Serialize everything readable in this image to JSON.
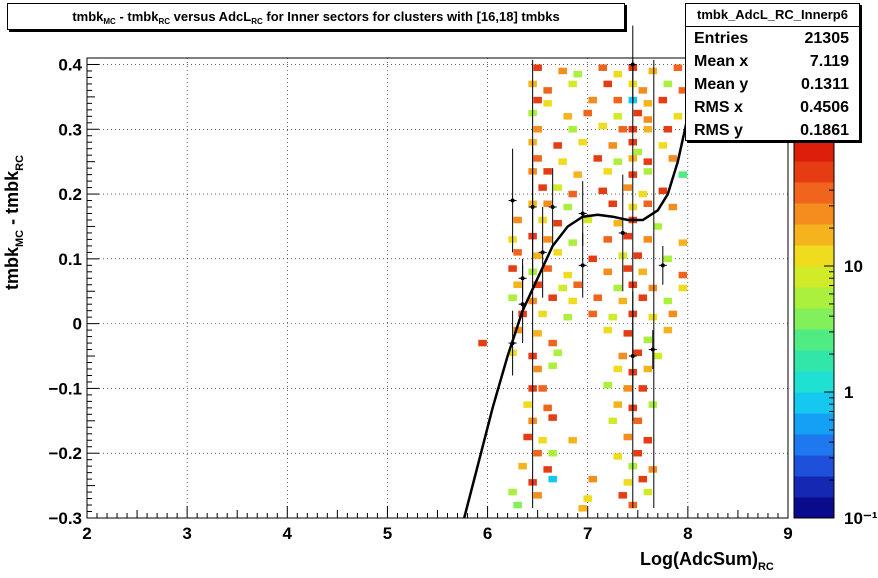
{
  "chart_data": {
    "type": "heatmap",
    "title_parts": [
      "tmbk",
      "MC",
      " - tmbk",
      "RC",
      " versus AdcL",
      "RC",
      " for Inner sectors for clusters with [16,18] tmbks"
    ],
    "xlabel_parts": [
      "Log(AdcSum)",
      "RC"
    ],
    "ylabel_parts": [
      "tmbk",
      "MC",
      " - tmbk",
      "RC"
    ],
    "xlim": [
      2,
      9
    ],
    "ylim": [
      -0.3,
      0.41
    ],
    "x_ticks": [
      "2",
      "3",
      "4",
      "5",
      "6",
      "7",
      "8",
      "9"
    ],
    "y_ticks": [
      "0.4",
      "0.3",
      "0.2",
      "0.1",
      "0",
      "−0.1",
      "−0.2",
      "−0.3"
    ],
    "z_scale": "log",
    "zlim": [
      0.1,
      100
    ],
    "z_ticks": [
      "10",
      "1",
      "10⁻¹"
    ],
    "palette": [
      "#0a0a8c",
      "#1428b4",
      "#1e50dc",
      "#1e78f0",
      "#14a0f5",
      "#14c8f0",
      "#1ee1d2",
      "#32e6aa",
      "#50eb82",
      "#82f05a",
      "#aaf03c",
      "#d2eb28",
      "#f0dc1e",
      "#f5b41e",
      "#f58c1e",
      "#f0641e",
      "#e63c14",
      "#dc1e0a"
    ],
    "cells_note": "approximate occupancy of 2D histogram, [x, y, colour level 0-17]",
    "cells": [
      [
        6.5,
        0.395,
        16
      ],
      [
        6.75,
        0.39,
        14
      ],
      [
        6.9,
        0.385,
        10
      ],
      [
        7.15,
        0.395,
        15
      ],
      [
        7.3,
        0.385,
        12
      ],
      [
        7.45,
        0.395,
        16
      ],
      [
        7.65,
        0.39,
        13
      ],
      [
        7.9,
        0.395,
        15
      ],
      [
        6.45,
        0.37,
        13
      ],
      [
        6.6,
        0.36,
        15
      ],
      [
        6.85,
        0.37,
        11
      ],
      [
        7.2,
        0.37,
        16
      ],
      [
        7.45,
        0.37,
        12
      ],
      [
        7.55,
        0.36,
        14
      ],
      [
        7.8,
        0.37,
        10
      ],
      [
        7.95,
        0.36,
        15
      ],
      [
        6.5,
        0.345,
        16
      ],
      [
        6.6,
        0.34,
        12
      ],
      [
        7.05,
        0.345,
        14
      ],
      [
        7.3,
        0.345,
        15
      ],
      [
        7.45,
        0.345,
        5
      ],
      [
        7.6,
        0.34,
        13
      ],
      [
        7.75,
        0.345,
        16
      ],
      [
        6.45,
        0.325,
        10
      ],
      [
        6.8,
        0.32,
        13
      ],
      [
        7.0,
        0.325,
        15
      ],
      [
        7.3,
        0.32,
        11
      ],
      [
        7.5,
        0.325,
        16
      ],
      [
        7.6,
        0.315,
        14
      ],
      [
        7.9,
        0.32,
        12
      ],
      [
        6.5,
        0.3,
        14
      ],
      [
        6.85,
        0.3,
        10
      ],
      [
        7.15,
        0.305,
        12
      ],
      [
        7.35,
        0.3,
        15
      ],
      [
        7.45,
        0.3,
        16
      ],
      [
        7.6,
        0.3,
        13
      ],
      [
        7.8,
        0.3,
        16
      ],
      [
        6.45,
        0.28,
        13
      ],
      [
        6.7,
        0.275,
        16
      ],
      [
        6.95,
        0.28,
        12
      ],
      [
        7.25,
        0.275,
        14
      ],
      [
        7.45,
        0.28,
        16
      ],
      [
        7.5,
        0.265,
        10
      ],
      [
        7.75,
        0.275,
        12
      ],
      [
        6.5,
        0.255,
        15
      ],
      [
        6.75,
        0.25,
        12
      ],
      [
        7.1,
        0.255,
        16
      ],
      [
        7.3,
        0.25,
        10
      ],
      [
        7.45,
        0.255,
        13
      ],
      [
        7.6,
        0.25,
        16
      ],
      [
        7.85,
        0.255,
        14
      ],
      [
        6.45,
        0.235,
        14
      ],
      [
        6.6,
        0.235,
        16
      ],
      [
        6.9,
        0.23,
        13
      ],
      [
        7.2,
        0.235,
        12
      ],
      [
        7.45,
        0.23,
        16
      ],
      [
        7.6,
        0.235,
        10
      ],
      [
        7.95,
        0.23,
        8
      ],
      [
        6.55,
        0.21,
        16
      ],
      [
        6.7,
        0.21,
        11
      ],
      [
        6.85,
        0.2,
        15
      ],
      [
        7.15,
        0.205,
        16
      ],
      [
        7.4,
        0.21,
        14
      ],
      [
        7.55,
        0.2,
        12
      ],
      [
        7.75,
        0.205,
        16
      ],
      [
        6.45,
        0.185,
        13
      ],
      [
        6.6,
        0.185,
        14
      ],
      [
        6.8,
        0.18,
        10
      ],
      [
        7.25,
        0.185,
        16
      ],
      [
        7.45,
        0.18,
        12
      ],
      [
        7.6,
        0.185,
        15
      ],
      [
        7.85,
        0.18,
        14
      ],
      [
        6.3,
        0.16,
        14
      ],
      [
        6.55,
        0.16,
        12
      ],
      [
        6.7,
        0.155,
        16
      ],
      [
        7.0,
        0.16,
        11
      ],
      [
        7.3,
        0.155,
        13
      ],
      [
        7.45,
        0.16,
        16
      ],
      [
        7.7,
        0.15,
        10
      ],
      [
        6.25,
        0.13,
        12
      ],
      [
        6.45,
        0.135,
        16
      ],
      [
        6.6,
        0.13,
        14
      ],
      [
        6.85,
        0.125,
        10
      ],
      [
        7.2,
        0.13,
        15
      ],
      [
        7.4,
        0.135,
        16
      ],
      [
        7.6,
        0.13,
        14
      ],
      [
        7.95,
        0.125,
        13
      ],
      [
        6.3,
        0.11,
        15
      ],
      [
        6.5,
        0.105,
        13
      ],
      [
        6.7,
        0.11,
        12
      ],
      [
        7.05,
        0.1,
        16
      ],
      [
        7.35,
        0.105,
        11
      ],
      [
        7.5,
        0.105,
        16
      ],
      [
        7.8,
        0.1,
        10
      ],
      [
        6.25,
        0.085,
        16
      ],
      [
        6.45,
        0.08,
        10
      ],
      [
        6.6,
        0.085,
        15
      ],
      [
        6.8,
        0.075,
        12
      ],
      [
        7.2,
        0.08,
        14
      ],
      [
        7.4,
        0.085,
        16
      ],
      [
        7.55,
        0.08,
        13
      ],
      [
        7.95,
        0.075,
        15
      ],
      [
        6.3,
        0.06,
        13
      ],
      [
        6.5,
        0.06,
        16
      ],
      [
        6.75,
        0.055,
        11
      ],
      [
        6.9,
        0.06,
        15
      ],
      [
        7.3,
        0.055,
        10
      ],
      [
        7.45,
        0.06,
        16
      ],
      [
        7.65,
        0.055,
        14
      ],
      [
        7.95,
        0.055,
        12
      ],
      [
        6.25,
        0.04,
        10
      ],
      [
        6.45,
        0.035,
        14
      ],
      [
        6.65,
        0.04,
        16
      ],
      [
        6.85,
        0.035,
        12
      ],
      [
        7.1,
        0.04,
        15
      ],
      [
        7.35,
        0.035,
        13
      ],
      [
        7.55,
        0.04,
        16
      ],
      [
        7.8,
        0.035,
        10
      ],
      [
        6.35,
        0.015,
        16
      ],
      [
        6.55,
        0.015,
        12
      ],
      [
        6.8,
        0.01,
        10
      ],
      [
        7.05,
        0.015,
        15
      ],
      [
        7.25,
        0.01,
        11
      ],
      [
        7.45,
        0.015,
        16
      ],
      [
        7.65,
        0.01,
        12
      ],
      [
        7.85,
        0.015,
        14
      ],
      [
        5.95,
        -0.03,
        16
      ],
      [
        6.3,
        -0.01,
        14
      ],
      [
        6.5,
        -0.015,
        13
      ],
      [
        6.65,
        -0.03,
        15
      ],
      [
        7.2,
        -0.01,
        12
      ],
      [
        7.4,
        -0.015,
        16
      ],
      [
        7.6,
        -0.025,
        10
      ],
      [
        7.8,
        -0.01,
        13
      ],
      [
        6.25,
        -0.045,
        12
      ],
      [
        6.45,
        -0.05,
        16
      ],
      [
        6.7,
        -0.045,
        10
      ],
      [
        7.35,
        -0.05,
        14
      ],
      [
        7.5,
        -0.045,
        16
      ],
      [
        7.7,
        -0.05,
        11
      ],
      [
        6.5,
        -0.07,
        14
      ],
      [
        6.65,
        -0.065,
        10
      ],
      [
        7.3,
        -0.07,
        12
      ],
      [
        7.45,
        -0.075,
        16
      ],
      [
        7.6,
        -0.07,
        13
      ],
      [
        6.45,
        -0.1,
        16
      ],
      [
        6.55,
        -0.1,
        15
      ],
      [
        7.2,
        -0.095,
        10
      ],
      [
        7.4,
        -0.1,
        14
      ],
      [
        7.55,
        -0.1,
        16
      ],
      [
        6.4,
        -0.125,
        12
      ],
      [
        6.6,
        -0.13,
        15
      ],
      [
        7.3,
        -0.125,
        13
      ],
      [
        7.45,
        -0.13,
        16
      ],
      [
        7.65,
        -0.125,
        10
      ],
      [
        6.45,
        -0.15,
        14
      ],
      [
        6.65,
        -0.145,
        16
      ],
      [
        7.25,
        -0.15,
        11
      ],
      [
        7.5,
        -0.15,
        15
      ],
      [
        6.4,
        -0.175,
        16
      ],
      [
        6.55,
        -0.18,
        12
      ],
      [
        6.85,
        -0.18,
        13
      ],
      [
        7.4,
        -0.175,
        14
      ],
      [
        7.6,
        -0.18,
        16
      ],
      [
        6.5,
        -0.2,
        15
      ],
      [
        6.65,
        -0.2,
        10
      ],
      [
        7.3,
        -0.205,
        12
      ],
      [
        7.5,
        -0.2,
        16
      ],
      [
        6.35,
        -0.22,
        13
      ],
      [
        6.6,
        -0.225,
        16
      ],
      [
        7.45,
        -0.22,
        10
      ],
      [
        7.65,
        -0.225,
        14
      ],
      [
        6.45,
        -0.245,
        16
      ],
      [
        6.65,
        -0.24,
        5
      ],
      [
        7.05,
        -0.24,
        14
      ],
      [
        7.4,
        -0.245,
        12
      ],
      [
        7.55,
        -0.24,
        16
      ],
      [
        6.25,
        -0.26,
        10
      ],
      [
        6.5,
        -0.265,
        14
      ],
      [
        7.0,
        -0.27,
        12
      ],
      [
        7.35,
        -0.265,
        16
      ],
      [
        7.6,
        -0.26,
        11
      ],
      [
        6.3,
        -0.28,
        9
      ],
      [
        6.95,
        -0.285,
        13
      ],
      [
        7.45,
        -0.28,
        15
      ]
    ],
    "profile_points": [
      {
        "x": 6.25,
        "y": -0.03,
        "err": 0.05
      },
      {
        "x": 6.25,
        "y": 0.19,
        "err": 0.08
      },
      {
        "x": 6.35,
        "y": 0.03,
        "err": 0.06
      },
      {
        "x": 6.45,
        "y": 0.18,
        "err": 0.1
      },
      {
        "x": 6.35,
        "y": 0.07,
        "err": 0.03
      },
      {
        "x": 6.55,
        "y": 0.11,
        "err": 0.07
      },
      {
        "x": 6.65,
        "y": 0.18,
        "err": 0.06
      },
      {
        "x": 6.95,
        "y": 0.17,
        "err": 0.05
      },
      {
        "x": 6.95,
        "y": 0.09,
        "err": 0.05
      },
      {
        "x": 7.35,
        "y": 0.14,
        "err": 0.09
      },
      {
        "x": 7.45,
        "y": 0.4,
        "err": 0.06
      },
      {
        "x": 7.45,
        "y": -0.05,
        "err": 0.1
      },
      {
        "x": 7.65,
        "y": -0.04,
        "err": 0.03
      },
      {
        "x": 7.75,
        "y": 0.09,
        "err": 0.03
      }
    ],
    "fit_curve": [
      [
        5.75,
        -0.31
      ],
      [
        5.9,
        -0.22
      ],
      [
        6.05,
        -0.13
      ],
      [
        6.2,
        -0.05
      ],
      [
        6.35,
        0.02
      ],
      [
        6.5,
        0.07
      ],
      [
        6.65,
        0.12
      ],
      [
        6.8,
        0.15
      ],
      [
        6.95,
        0.165
      ],
      [
        7.1,
        0.168
      ],
      [
        7.25,
        0.165
      ],
      [
        7.4,
        0.16
      ],
      [
        7.55,
        0.16
      ],
      [
        7.7,
        0.175
      ],
      [
        7.8,
        0.2
      ],
      [
        7.9,
        0.25
      ],
      [
        8.0,
        0.32
      ],
      [
        8.1,
        0.41
      ]
    ]
  },
  "stats": {
    "name": "tmbk_AdcL_RC_Innerp6",
    "rows": [
      {
        "label": "Entries",
        "value": "21305"
      },
      {
        "label": "Mean x",
        "value": "7.119"
      },
      {
        "label": "Mean y",
        "value": "0.1311"
      },
      {
        "label": "RMS x",
        "value": "0.4506"
      },
      {
        "label": "RMS y",
        "value": "0.1861"
      }
    ]
  }
}
